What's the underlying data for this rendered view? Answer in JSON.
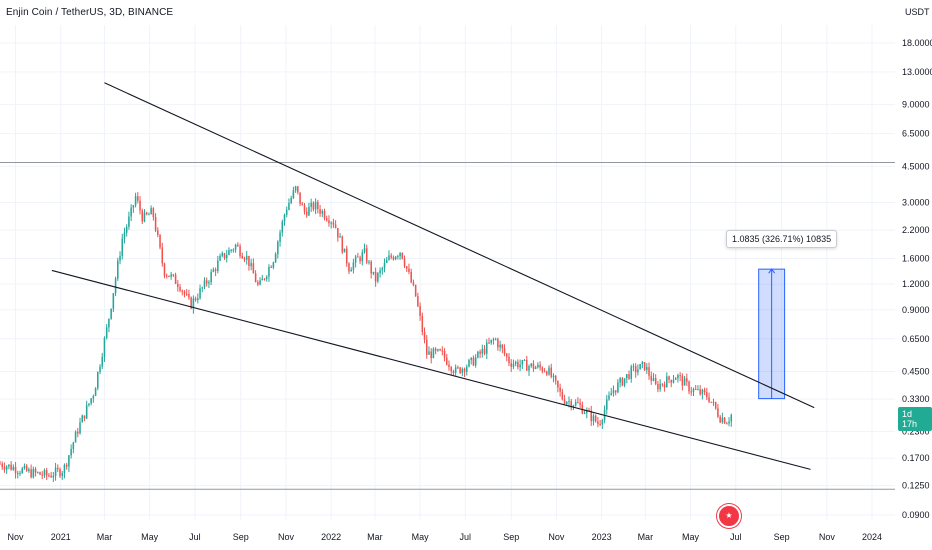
{
  "header": {
    "title": "Enjin Coin / TetherUS, 3D, BINANCE",
    "currency": "USDT",
    "countdown": "1d 17h"
  },
  "measure_label": "1.0835 (326.71%) 10835",
  "colors": {
    "up": "#26a69a",
    "down": "#ef5350",
    "trendline": "#131722",
    "measure_fill": "#2962ff",
    "grid": "#f0f3fa"
  },
  "chart_data": {
    "type": "candlestick",
    "title": "Enjin Coin / TetherUS, 3D, BINANCE",
    "y_scale": "log",
    "ylim": [
      0.085,
      22
    ],
    "y_ticks": [
      "18.0000",
      "13.0000",
      "9.0000",
      "6.5000",
      "4.5000",
      "3.0000",
      "2.2000",
      "1.6000",
      "1.2000",
      "0.9000",
      "0.6500",
      "0.4500",
      "0.3300",
      "0.2300",
      "0.1700",
      "0.1250",
      "0.0900"
    ],
    "x_ticks": [
      "Nov",
      "2021",
      "Mar",
      "May",
      "Jul",
      "Sep",
      "Nov",
      "2022",
      "Mar",
      "May",
      "Jul",
      "Sep",
      "Nov",
      "2023",
      "Mar",
      "May",
      "Jul",
      "Sep",
      "Nov",
      "2024"
    ],
    "x_range": [
      "2020-10-11",
      "2024-02-01"
    ],
    "anchors": [
      [
        "2020-10-11",
        0.16
      ],
      [
        "2020-11-20",
        0.145
      ],
      [
        "2020-12-15",
        0.14
      ],
      [
        "2021-01-05",
        0.15
      ],
      [
        "2021-01-25",
        0.24
      ],
      [
        "2021-02-15",
        0.36
      ],
      [
        "2021-03-05",
        0.75
      ],
      [
        "2021-03-25",
        2.0
      ],
      [
        "2021-04-05",
        2.6
      ],
      [
        "2021-04-12",
        3.2
      ],
      [
        "2021-04-22",
        2.5
      ],
      [
        "2021-05-05",
        2.7
      ],
      [
        "2021-05-20",
        1.4
      ],
      [
        "2021-06-10",
        1.2
      ],
      [
        "2021-06-25",
        0.95
      ],
      [
        "2021-07-15",
        1.2
      ],
      [
        "2021-08-05",
        1.6
      ],
      [
        "2021-08-25",
        1.85
      ],
      [
        "2021-09-10",
        1.6
      ],
      [
        "2021-09-25",
        1.15
      ],
      [
        "2021-10-15",
        1.6
      ],
      [
        "2021-11-01",
        2.8
      ],
      [
        "2021-11-14",
        3.5
      ],
      [
        "2021-11-25",
        2.7
      ],
      [
        "2021-12-10",
        2.9
      ],
      [
        "2022-01-05",
        2.4
      ],
      [
        "2022-01-25",
        1.45
      ],
      [
        "2022-02-15",
        1.7
      ],
      [
        "2022-03-01",
        1.25
      ],
      [
        "2022-03-20",
        1.6
      ],
      [
        "2022-04-05",
        1.75
      ],
      [
        "2022-04-25",
        1.05
      ],
      [
        "2022-05-10",
        0.55
      ],
      [
        "2022-05-30",
        0.55
      ],
      [
        "2022-06-18",
        0.45
      ],
      [
        "2022-07-10",
        0.5
      ],
      [
        "2022-08-10",
        0.65
      ],
      [
        "2022-08-30",
        0.5
      ],
      [
        "2022-09-25",
        0.48
      ],
      [
        "2022-10-20",
        0.46
      ],
      [
        "2022-11-10",
        0.33
      ],
      [
        "2022-12-01",
        0.31
      ],
      [
        "2022-12-28",
        0.25
      ],
      [
        "2023-01-15",
        0.36
      ],
      [
        "2023-02-10",
        0.45
      ],
      [
        "2023-02-28",
        0.48
      ],
      [
        "2023-03-15",
        0.38
      ],
      [
        "2023-04-12",
        0.43
      ],
      [
        "2023-05-01",
        0.37
      ],
      [
        "2023-05-25",
        0.34
      ],
      [
        "2023-06-10",
        0.27
      ],
      [
        "2023-06-20",
        0.26
      ],
      [
        "2023-06-26",
        0.28
      ]
    ],
    "trendlines": [
      {
        "from": [
          "2021-03-01",
          11.5
        ],
        "to": [
          "2023-10-15",
          0.3
        ]
      },
      {
        "from": [
          "2020-12-20",
          1.4
        ],
        "to": [
          "2023-10-10",
          0.15
        ]
      }
    ],
    "horizontal_lines": [
      4.7,
      0.12
    ],
    "measure": {
      "from": [
        "2023-08-01",
        0.332
      ],
      "to": [
        "2023-09-05",
        1.42
      ],
      "label": "1.0835 (326.71%) 10835"
    },
    "current_price": 0.2788
  }
}
